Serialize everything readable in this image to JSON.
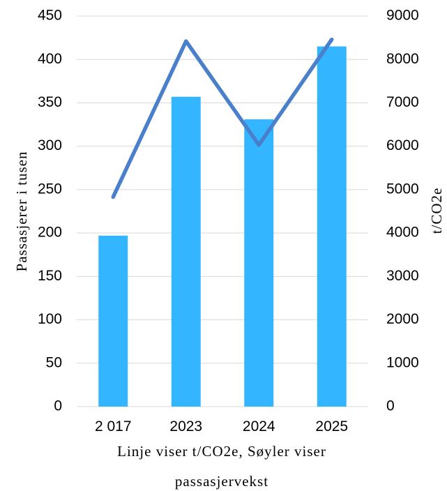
{
  "chart_data": {
    "type": "bar",
    "categories": [
      "2 017",
      "2023",
      "2024",
      "2025"
    ],
    "series": [
      {
        "type": "bar",
        "axis": "left",
        "color": "#33b5ff",
        "values": [
          197,
          357,
          331,
          415
        ]
      },
      {
        "type": "line",
        "axis": "right",
        "color": "#4a7fcc",
        "values": [
          4830,
          8420,
          6030,
          8460
        ]
      }
    ],
    "ylabel": "Passasjerer i tusen",
    "y2label": "t/CO2e",
    "xlabel_lines": [
      "Linje viser t/CO2e, Søyler viser",
      "passasjervekst"
    ],
    "ylim": [
      0,
      450
    ],
    "y2lim": [
      0,
      9000
    ],
    "yticks": [
      "0",
      "50",
      "100",
      "150",
      "200",
      "250",
      "300",
      "350",
      "400",
      "450"
    ],
    "y2ticks": [
      "0",
      "1000",
      "2000",
      "3000",
      "4000",
      "5000",
      "6000",
      "7000",
      "8000",
      "9000"
    ],
    "grid": true,
    "legend": "none"
  }
}
